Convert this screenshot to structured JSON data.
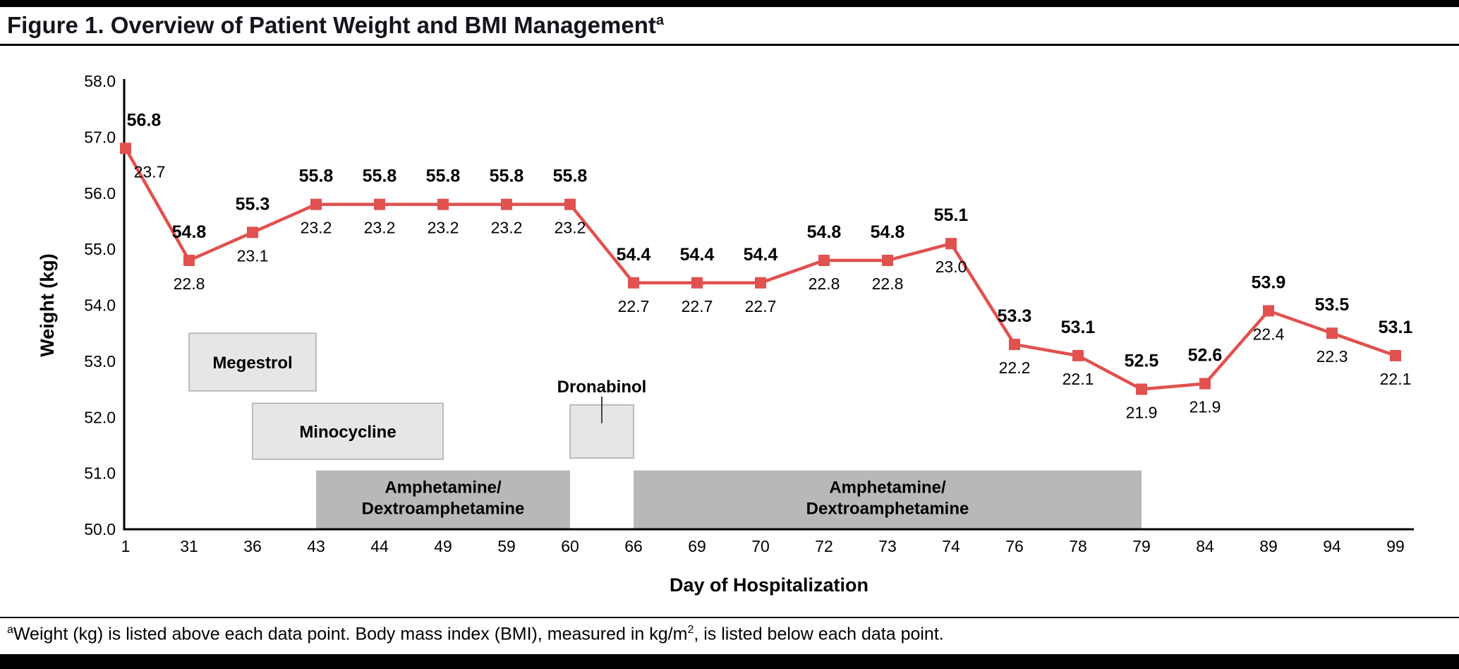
{
  "title": {
    "text": "Figure 1. Overview of Patient Weight and BMI Management",
    "superscript": "a"
  },
  "footnote": {
    "marker": "a",
    "text_before_sup": "Weight (kg) is listed above each data point. Body mass index (BMI), measured in kg/m",
    "sup": "2",
    "text_after_sup": ",  is listed below each data point."
  },
  "colors": {
    "line": "#E0514F",
    "box_light": "#E6E6E6",
    "box_light_border": "#ABABAB",
    "box_dark": "#B8B8B8",
    "axis": "#000000",
    "title_text": "#14141D"
  },
  "chart_data": {
    "type": "line",
    "title": "Overview of Patient Weight and BMI Management",
    "xlabel": "Day of Hospitalization",
    "ylabel": "Weight (kg)",
    "ylim": [
      50.0,
      58.0
    ],
    "grid": false,
    "legend": false,
    "yticks": [
      {
        "value": 58,
        "label": "58.0"
      },
      {
        "value": 57,
        "label": "57.0"
      },
      {
        "value": 56,
        "label": "56.0"
      },
      {
        "value": 55,
        "label": "55.0"
      },
      {
        "value": 54,
        "label": "54.0"
      },
      {
        "value": 53,
        "label": "53.0"
      },
      {
        "value": 52,
        "label": "52.0"
      },
      {
        "value": 51,
        "label": "51.0"
      },
      {
        "value": 50,
        "label": "50.0"
      }
    ],
    "points": [
      {
        "day": "1",
        "weight": "56.8",
        "bmi": "23.7"
      },
      {
        "day": "31",
        "weight": "54.8",
        "bmi": "22.8"
      },
      {
        "day": "36",
        "weight": "55.3",
        "bmi": "23.1"
      },
      {
        "day": "43",
        "weight": "55.8",
        "bmi": "23.2"
      },
      {
        "day": "44",
        "weight": "55.8",
        "bmi": "23.2"
      },
      {
        "day": "49",
        "weight": "55.8",
        "bmi": "23.2"
      },
      {
        "day": "59",
        "weight": "55.8",
        "bmi": "23.2"
      },
      {
        "day": "60",
        "weight": "55.8",
        "bmi": "23.2"
      },
      {
        "day": "66",
        "weight": "54.4",
        "bmi": "22.7"
      },
      {
        "day": "69",
        "weight": "54.4",
        "bmi": "22.7"
      },
      {
        "day": "70",
        "weight": "54.4",
        "bmi": "22.7"
      },
      {
        "day": "72",
        "weight": "54.8",
        "bmi": "22.8"
      },
      {
        "day": "73",
        "weight": "54.8",
        "bmi": "22.8"
      },
      {
        "day": "74",
        "weight": "55.1",
        "bmi": "23.0"
      },
      {
        "day": "76",
        "weight": "53.3",
        "bmi": "22.2"
      },
      {
        "day": "78",
        "weight": "53.1",
        "bmi": "22.1"
      },
      {
        "day": "79",
        "weight": "52.5",
        "bmi": "21.9"
      },
      {
        "day": "84",
        "weight": "52.6",
        "bmi": "21.9"
      },
      {
        "day": "89",
        "weight": "53.9",
        "bmi": "22.4"
      },
      {
        "day": "94",
        "weight": "53.5",
        "bmi": "22.3"
      },
      {
        "day": "99",
        "weight": "53.1",
        "bmi": "22.1"
      }
    ],
    "medications": [
      {
        "label": "Megestrol",
        "label_lines": [
          "Megestrol"
        ],
        "start_day": "31",
        "end_day": "43",
        "y_bottom": 52.47,
        "y_top": 53.5,
        "shade": "light",
        "label_position": "inside"
      },
      {
        "label": "Minocycline",
        "label_lines": [
          "Minocycline"
        ],
        "start_day": "36",
        "end_day": "49",
        "y_bottom": 51.25,
        "y_top": 52.25,
        "shade": "light",
        "label_position": "inside"
      },
      {
        "label": "Amphetamine/Dextroamphetamine",
        "label_lines": [
          "Amphetamine/",
          "Dextroamphetamine"
        ],
        "start_day": "43",
        "end_day": "60",
        "y_bottom": 50.0,
        "y_top": 51.05,
        "shade": "dark",
        "label_position": "inside"
      },
      {
        "label": "Dronabinol",
        "label_lines": [
          "Dronabinol"
        ],
        "start_day": "60",
        "end_day": "66",
        "y_bottom": 51.27,
        "y_top": 52.22,
        "shade": "light",
        "label_position": "above"
      },
      {
        "label": "Amphetamine/Dextroamphetamine",
        "label_lines": [
          "Amphetamine/",
          "Dextroamphetamine"
        ],
        "start_day": "66",
        "end_day": "79",
        "y_bottom": 50.0,
        "y_top": 51.05,
        "shade": "dark",
        "label_position": "inside"
      }
    ]
  }
}
